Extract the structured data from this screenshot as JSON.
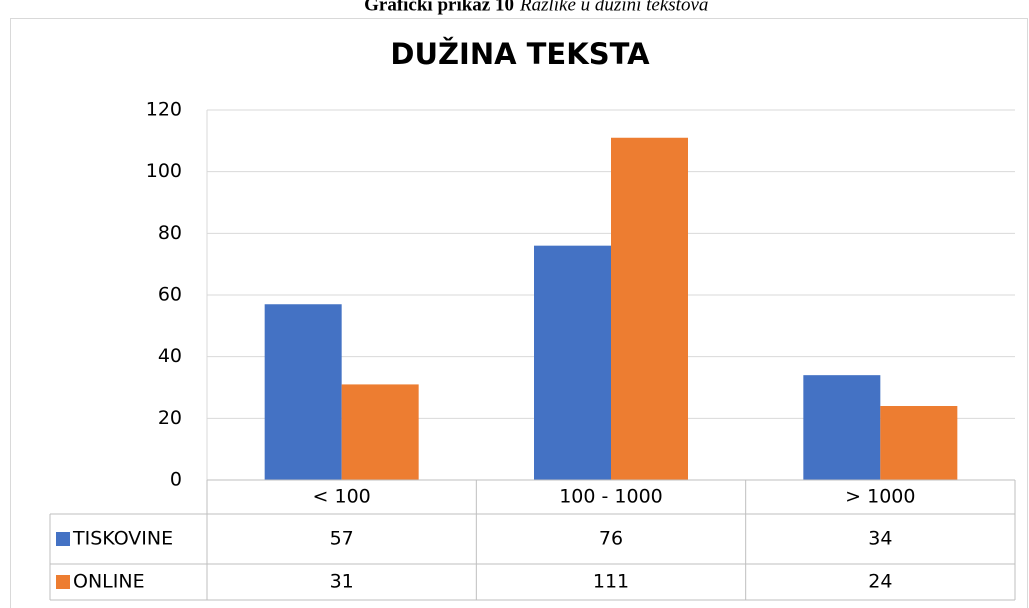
{
  "caption": {
    "label": "Grafički prikaz 10",
    "text": "Razlike u dužini tekstova"
  },
  "chart_data": {
    "type": "bar",
    "title": "DUŽINA TEKSTA",
    "categories": [
      "< 100",
      "100 - 1000",
      "> 1000"
    ],
    "series": [
      {
        "name": "TISKOVINE",
        "color": "#4472c4",
        "values": [
          57,
          76,
          34
        ]
      },
      {
        "name": "ONLINE",
        "color": "#ed7d31",
        "values": [
          31,
          111,
          24
        ]
      }
    ],
    "ylim": [
      0,
      120
    ],
    "yticks": [
      0,
      20,
      40,
      60,
      80,
      100,
      120
    ],
    "grid": true,
    "data_table": true
  }
}
